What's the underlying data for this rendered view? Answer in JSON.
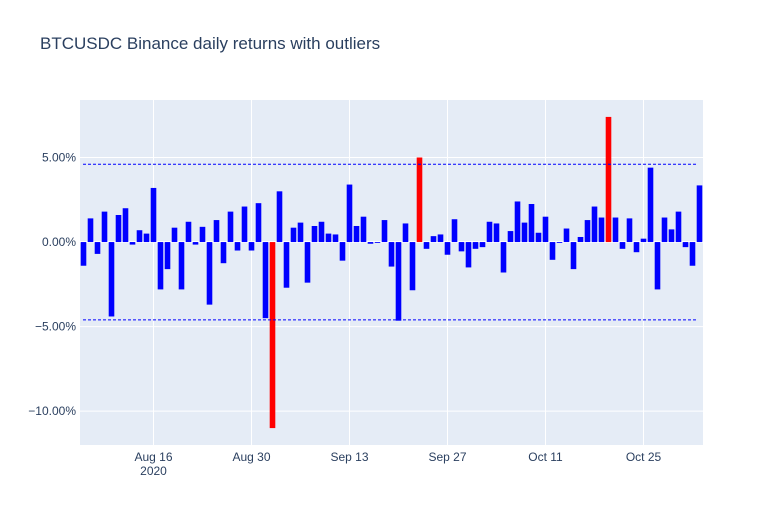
{
  "chart_data": {
    "type": "bar",
    "title": "BTCUSDC Binance daily returns with outliers",
    "xlabel": "",
    "ylabel": "",
    "x_start": "2020-08-06",
    "x_end": "2020-11-02",
    "x_ticks": [
      {
        "date": "2020-08-16",
        "label": "Aug 16",
        "sub": "2020"
      },
      {
        "date": "2020-08-30",
        "label": "Aug 30",
        "sub": ""
      },
      {
        "date": "2020-09-13",
        "label": "Sep 13",
        "sub": ""
      },
      {
        "date": "2020-09-27",
        "label": "Sep 27",
        "sub": ""
      },
      {
        "date": "2020-10-11",
        "label": "Oct 11",
        "sub": ""
      },
      {
        "date": "2020-10-25",
        "label": "Oct 25",
        "sub": ""
      }
    ],
    "y_ticks": [
      {
        "value": 5,
        "label": "5.00%"
      },
      {
        "value": 0,
        "label": "0.00%"
      },
      {
        "value": -5,
        "label": "−5.00%"
      },
      {
        "value": -10,
        "label": "−10.00%"
      }
    ],
    "ylim": [
      -12.0,
      8.4
    ],
    "threshold_lines": [
      4.6,
      -4.6
    ],
    "colors": {
      "normal": "#0000ff",
      "outlier": "#ff0000",
      "background": "#e5ecf6",
      "threshold": "#0000ff"
    },
    "series": [
      {
        "values": [
          -1.4,
          1.4,
          -0.7,
          1.8,
          -4.4,
          1.6,
          2.0,
          -0.15,
          0.7,
          0.5,
          3.2,
          -2.8,
          -1.6,
          0.85,
          -2.8,
          1.2,
          -0.15,
          0.9,
          -3.7,
          1.3,
          -1.25,
          1.8,
          -0.5,
          2.1,
          -0.5,
          2.3,
          -4.5,
          -11.0,
          3.0,
          -2.7,
          0.85,
          1.15,
          -2.4,
          0.95,
          1.2,
          0.5,
          0.45,
          -1.1,
          3.4,
          0.95,
          1.5,
          -0.1,
          -0.05,
          1.3,
          -1.45,
          -4.65,
          1.1,
          -2.85,
          5.0,
          -0.4,
          0.35,
          0.45,
          -0.75,
          1.35,
          -0.55,
          -1.5,
          -0.4,
          -0.3,
          1.2,
          1.1,
          -1.8,
          0.65,
          2.4,
          1.15,
          2.25,
          0.55,
          1.5,
          -1.05,
          -0.05,
          0.8,
          -1.6,
          0.3,
          1.3,
          2.1,
          1.45,
          7.4,
          1.45,
          -0.4,
          1.4,
          -0.6,
          0.2,
          4.4,
          -2.8,
          1.45,
          0.75,
          1.8,
          -0.3,
          -1.4,
          3.35
        ],
        "outliers": [
          27,
          48,
          75
        ]
      }
    ]
  }
}
